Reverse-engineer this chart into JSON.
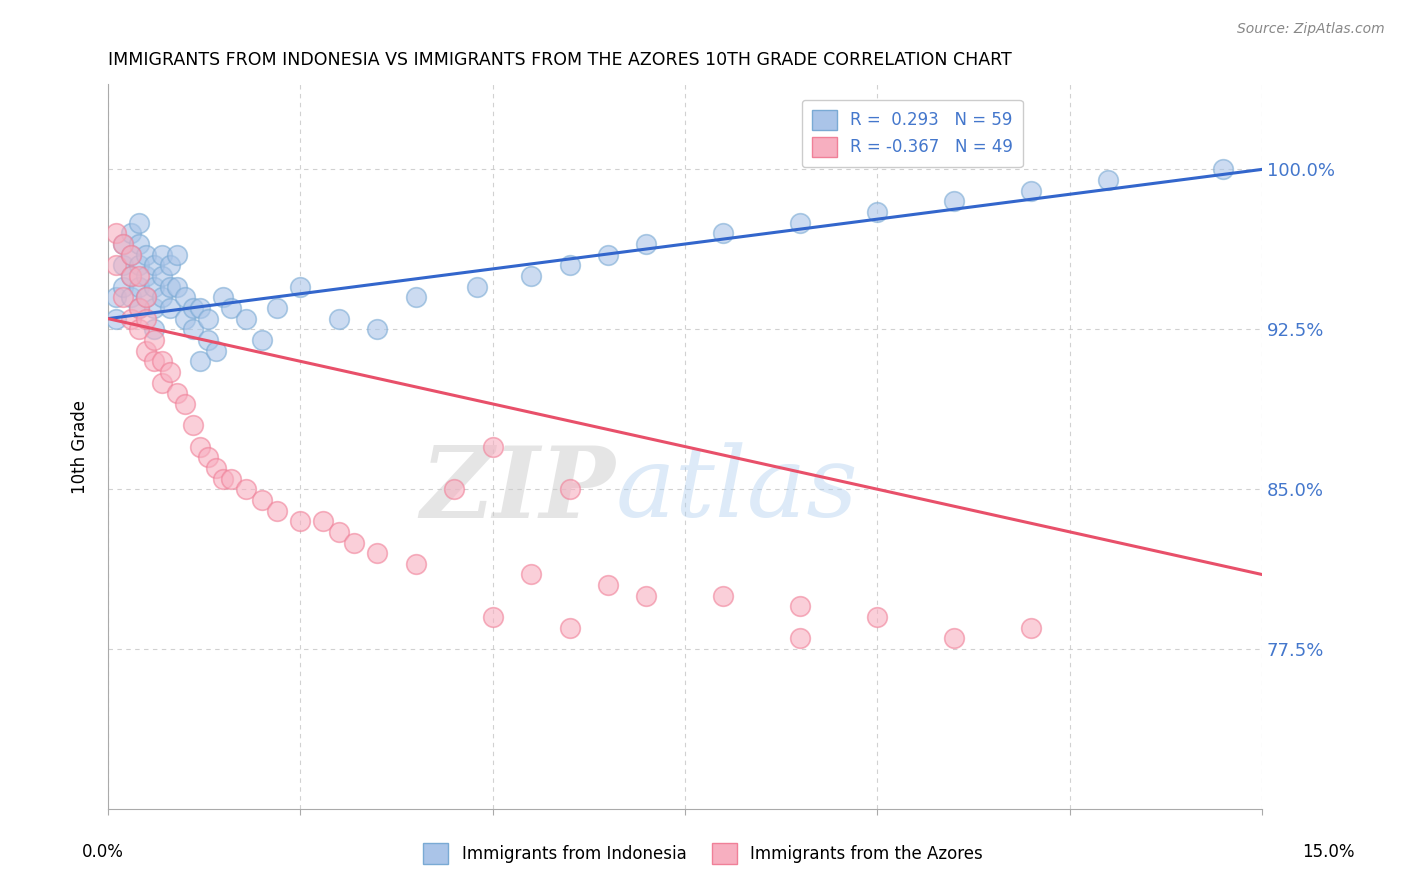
{
  "title": "IMMIGRANTS FROM INDONESIA VS IMMIGRANTS FROM THE AZORES 10TH GRADE CORRELATION CHART",
  "source": "Source: ZipAtlas.com",
  "ylabel": "10th Grade",
  "ytick_labels": [
    "77.5%",
    "85.0%",
    "92.5%",
    "100.0%"
  ],
  "ytick_values": [
    0.775,
    0.85,
    0.925,
    1.0
  ],
  "xlim": [
    0.0,
    0.15
  ],
  "ylim": [
    0.7,
    1.04
  ],
  "legend_r1": "R =  0.293   N = 59",
  "legend_r2": "R = -0.367   N = 49",
  "blue_color": "#aac4e8",
  "pink_color": "#f7afc0",
  "blue_edge": "#7aaad4",
  "pink_edge": "#f08098",
  "trend_blue": "#3366cc",
  "trend_pink": "#e8506a",
  "blue_scatter_x": [
    0.001,
    0.001,
    0.002,
    0.002,
    0.002,
    0.003,
    0.003,
    0.003,
    0.003,
    0.004,
    0.004,
    0.004,
    0.004,
    0.004,
    0.005,
    0.005,
    0.005,
    0.006,
    0.006,
    0.006,
    0.006,
    0.007,
    0.007,
    0.007,
    0.008,
    0.008,
    0.008,
    0.009,
    0.009,
    0.01,
    0.01,
    0.011,
    0.011,
    0.012,
    0.012,
    0.013,
    0.013,
    0.014,
    0.015,
    0.016,
    0.018,
    0.02,
    0.022,
    0.025,
    0.03,
    0.035,
    0.04,
    0.048,
    0.055,
    0.06,
    0.065,
    0.07,
    0.08,
    0.09,
    0.1,
    0.11,
    0.12,
    0.13,
    0.145
  ],
  "blue_scatter_y": [
    0.94,
    0.93,
    0.965,
    0.955,
    0.945,
    0.97,
    0.96,
    0.95,
    0.94,
    0.975,
    0.965,
    0.955,
    0.945,
    0.935,
    0.96,
    0.95,
    0.94,
    0.955,
    0.945,
    0.935,
    0.925,
    0.96,
    0.95,
    0.94,
    0.955,
    0.945,
    0.935,
    0.96,
    0.945,
    0.94,
    0.93,
    0.935,
    0.925,
    0.935,
    0.91,
    0.93,
    0.92,
    0.915,
    0.94,
    0.935,
    0.93,
    0.92,
    0.935,
    0.945,
    0.93,
    0.925,
    0.94,
    0.945,
    0.95,
    0.955,
    0.96,
    0.965,
    0.97,
    0.975,
    0.98,
    0.985,
    0.99,
    0.995,
    1.0
  ],
  "pink_scatter_x": [
    0.001,
    0.001,
    0.002,
    0.002,
    0.003,
    0.003,
    0.003,
    0.004,
    0.004,
    0.004,
    0.005,
    0.005,
    0.005,
    0.006,
    0.006,
    0.007,
    0.007,
    0.008,
    0.009,
    0.01,
    0.011,
    0.012,
    0.013,
    0.014,
    0.015,
    0.016,
    0.018,
    0.02,
    0.022,
    0.025,
    0.028,
    0.03,
    0.032,
    0.035,
    0.04,
    0.045,
    0.05,
    0.055,
    0.06,
    0.065,
    0.07,
    0.08,
    0.09,
    0.1,
    0.12,
    0.05,
    0.06,
    0.09,
    0.11
  ],
  "pink_scatter_y": [
    0.97,
    0.955,
    0.965,
    0.94,
    0.96,
    0.95,
    0.93,
    0.95,
    0.935,
    0.925,
    0.94,
    0.93,
    0.915,
    0.92,
    0.91,
    0.91,
    0.9,
    0.905,
    0.895,
    0.89,
    0.88,
    0.87,
    0.865,
    0.86,
    0.855,
    0.855,
    0.85,
    0.845,
    0.84,
    0.835,
    0.835,
    0.83,
    0.825,
    0.82,
    0.815,
    0.85,
    0.87,
    0.81,
    0.85,
    0.805,
    0.8,
    0.8,
    0.795,
    0.79,
    0.785,
    0.79,
    0.785,
    0.78,
    0.78
  ],
  "blue_trend_x": [
    0.0,
    0.15
  ],
  "blue_trend_y": [
    0.93,
    1.0
  ],
  "pink_trend_x": [
    0.0,
    0.15
  ],
  "pink_trend_y": [
    0.93,
    0.81
  ],
  "watermark_zip": "ZIP",
  "watermark_atlas": "atlas",
  "background_color": "#ffffff",
  "grid_color": "#cccccc"
}
